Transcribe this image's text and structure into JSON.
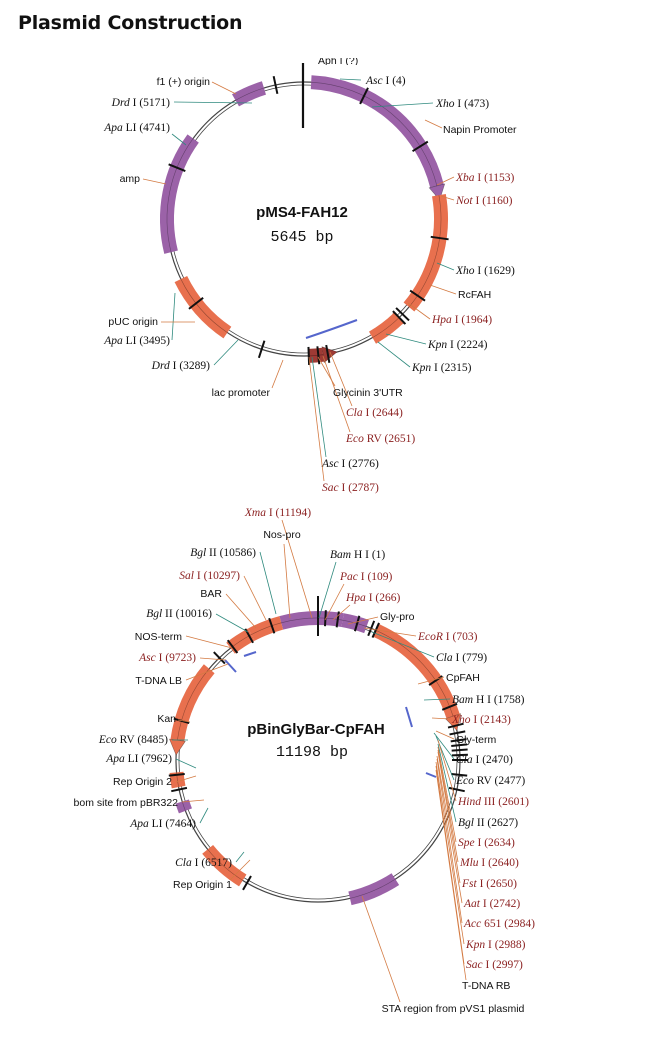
{
  "page_title": "Plasmid Construction",
  "colors": {
    "feature_purple": "#9b62a8",
    "feature_orange": "#e8704e",
    "promoter_red": "#9e3a34",
    "leader_teal": "#2f8a7e",
    "leader_orange": "#d37a42",
    "emph_text": "#8a1f1f",
    "blue_mark": "#5566cc",
    "backbone": "#444444",
    "text": "#111111"
  },
  "map1": {
    "name": "pMS4-FAH12",
    "size": "5645 bp",
    "top_cut_partial": "Aph I (?)",
    "features": [
      {
        "label": "Napin Promoter",
        "color": "feature_purple"
      },
      {
        "label": "RcFAH",
        "color": "feature_orange"
      },
      {
        "label": "Glycinin 3'UTR",
        "color": "feature_orange"
      },
      {
        "label": "lac promoter",
        "color": "promoter_red"
      },
      {
        "label": "pUC origin",
        "color": "feature_orange"
      },
      {
        "label": "amp",
        "color": "feature_purple"
      },
      {
        "label": "f1 (+) origin",
        "color": "feature_purple"
      }
    ],
    "sites": [
      {
        "enzyme": "Asc",
        "suffix": "I (4)",
        "emph": false
      },
      {
        "enzyme": "Xho",
        "suffix": "I (473)",
        "emph": false
      },
      {
        "enzyme": "Xba",
        "suffix": "I (1153)",
        "emph": true
      },
      {
        "enzyme": "Not",
        "suffix": "I (1160)",
        "emph": true
      },
      {
        "enzyme": "Xho",
        "suffix": "I (1629)",
        "emph": false
      },
      {
        "enzyme": "Hpa",
        "suffix": "I (1964)",
        "emph": true
      },
      {
        "enzyme": "Kpn",
        "suffix": "I (2224)",
        "emph": false
      },
      {
        "enzyme": "Kpn",
        "suffix": "I (2315)",
        "emph": false
      },
      {
        "enzyme": "Cla",
        "suffix": "I (2644)",
        "emph": true
      },
      {
        "enzyme": "Eco",
        "suffix": "RV (2651)",
        "emph": true
      },
      {
        "enzyme": "Asc",
        "suffix": "I (2776)",
        "emph": false
      },
      {
        "enzyme": "Sac",
        "suffix": "I (2787)",
        "emph": true
      },
      {
        "enzyme": "Drd",
        "suffix": "I (3289)",
        "emph": false
      },
      {
        "enzyme": "Apa",
        "suffix": "LI (3495)",
        "emph": false
      },
      {
        "enzyme": "Apa",
        "suffix": "LI (4741)",
        "emph": false
      },
      {
        "enzyme": "Drd",
        "suffix": "I (5171)",
        "emph": false
      }
    ]
  },
  "map2": {
    "name": "pBinGlyBar-CpFAH",
    "size": "11198 bp",
    "features": [
      {
        "label": "Nos-pro",
        "color": "feature_purple"
      },
      {
        "label": "Gly-pro",
        "color": "feature_purple"
      },
      {
        "label": "CpFAH",
        "color": "feature_orange"
      },
      {
        "label": "Gly-term",
        "color": "feature_orange"
      },
      {
        "label": "T-DNA RB",
        "color": "backbone"
      },
      {
        "label": "STA region from pVS1 plasmid",
        "color": "feature_purple"
      },
      {
        "label": "Rep Origin 1",
        "color": "feature_orange"
      },
      {
        "label": "bom site from pBR322",
        "color": "feature_purple"
      },
      {
        "label": "Rep Origin 2",
        "color": "feature_orange"
      },
      {
        "label": "Kan",
        "color": "feature_orange"
      },
      {
        "label": "T-DNA LB",
        "color": "backbone"
      },
      {
        "label": "NOS-term",
        "color": "feature_orange"
      },
      {
        "label": "BAR",
        "color": "feature_orange"
      }
    ],
    "sites": [
      {
        "enzyme": "Xma",
        "suffix": "I (11194)",
        "emph": true
      },
      {
        "enzyme": "Bam",
        "suffix": "H I (1)",
        "emph": false
      },
      {
        "enzyme": "Pac",
        "suffix": "I (109)",
        "emph": true
      },
      {
        "enzyme": "Hpa",
        "suffix": "I (266)",
        "emph": true
      },
      {
        "enzyme": "EcoR",
        "suffix": "I (703)",
        "emph": true
      },
      {
        "enzyme": "Cla",
        "suffix": "I (779)",
        "emph": false
      },
      {
        "enzyme": "Bam",
        "suffix": "H I (1758)",
        "emph": false
      },
      {
        "enzyme": "Xho",
        "suffix": "I (2143)",
        "emph": true
      },
      {
        "enzyme": "Cla",
        "suffix": "I (2470)",
        "emph": false
      },
      {
        "enzyme": "Eco",
        "suffix": "RV (2477)",
        "emph": false
      },
      {
        "enzyme": "Hind",
        "suffix": "III (2601)",
        "emph": true
      },
      {
        "enzyme": "Bgl",
        "suffix": "II (2627)",
        "emph": false
      },
      {
        "enzyme": "Spe",
        "suffix": "I (2634)",
        "emph": true
      },
      {
        "enzyme": "Mlu",
        "suffix": "I (2640)",
        "emph": true
      },
      {
        "enzyme": "Fst",
        "suffix": "I (2650)",
        "emph": true
      },
      {
        "enzyme": "Aat",
        "suffix": "I (2742)",
        "emph": true
      },
      {
        "enzyme": "Acc",
        "suffix": "651 (2984)",
        "emph": true
      },
      {
        "enzyme": "Kpn",
        "suffix": "I (2988)",
        "emph": true
      },
      {
        "enzyme": "Sac",
        "suffix": "I (2997)",
        "emph": true
      },
      {
        "enzyme": "Cla",
        "suffix": "I (6517)",
        "emph": false
      },
      {
        "enzyme": "Apa",
        "suffix": "LI (7464)",
        "emph": false
      },
      {
        "enzyme": "Apa",
        "suffix": "LI (7962)",
        "emph": false
      },
      {
        "enzyme": "Eco",
        "suffix": "RV (8485)",
        "emph": false
      },
      {
        "enzyme": "Asc",
        "suffix": "I (9723)",
        "emph": true
      },
      {
        "enzyme": "Bgl",
        "suffix": "II (10016)",
        "emph": false
      },
      {
        "enzyme": "Sal",
        "suffix": "I (10297)",
        "emph": true
      },
      {
        "enzyme": "Bgl",
        "suffix": "II (10586)",
        "emph": false
      }
    ]
  }
}
